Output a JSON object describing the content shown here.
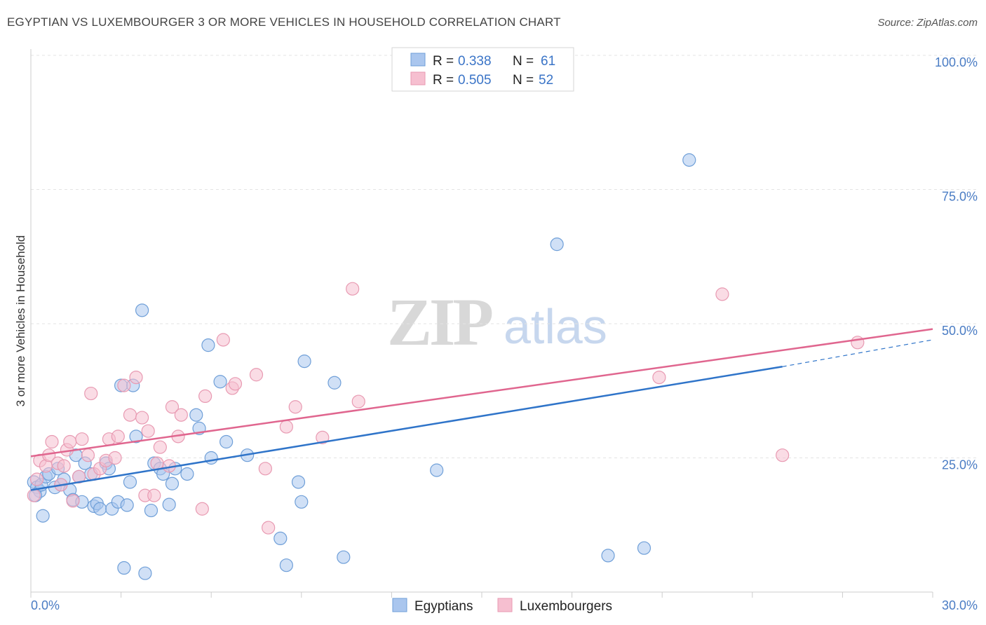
{
  "title": "EGYPTIAN VS LUXEMBOURGER 3 OR MORE VEHICLES IN HOUSEHOLD CORRELATION CHART",
  "source": "Source: ZipAtlas.com",
  "watermark": {
    "zip": "ZIP",
    "atlas": "atlas"
  },
  "colors": {
    "blue_fill": "#aac6ee",
    "blue_stroke": "#6f9fd8",
    "blue_line": "#2f74c9",
    "pink_fill": "#f6bfd0",
    "pink_stroke": "#e89ab2",
    "pink_line": "#e0668f",
    "grid": "#e3e3e3",
    "axis_text": "#4a7cc4"
  },
  "legend": {
    "rows": [
      {
        "r_label": "R =",
        "r_value": "0.338",
        "n_label": "N =",
        "n_value": "61"
      },
      {
        "r_label": "R =",
        "r_value": "0.505",
        "n_label": "N =",
        "n_value": "52"
      }
    ]
  },
  "bottom_legend": [
    "Egyptians",
    "Luxembourgers"
  ],
  "chart_data": {
    "type": "scatter",
    "title": "EGYPTIAN VS LUXEMBOURGER 3 OR MORE VEHICLES IN HOUSEHOLD CORRELATION CHART",
    "xlabel": "",
    "ylabel": "3 or more Vehicles in Household",
    "xlim": [
      0,
      30
    ],
    "ylim": [
      0,
      100
    ],
    "x_tick_labels": [
      "0.0%",
      "30.0%"
    ],
    "y_ticks": [
      25,
      50,
      75,
      100
    ],
    "y_tick_labels": [
      "25.0%",
      "50.0%",
      "75.0%",
      "100.0%"
    ],
    "grid": true,
    "series": [
      {
        "name": "Egyptians",
        "r": 0.338,
        "n": 61,
        "trend": {
          "x0": 0,
          "y0": 19.0,
          "x1": 25.0,
          "y1": 42.0,
          "dashed_to_x": 30,
          "dashed_to_y": 47.0
        },
        "points": [
          {
            "x": 0.1,
            "y": 20.5
          },
          {
            "x": 0.2,
            "y": 19.5
          },
          {
            "x": 0.3,
            "y": 18.8
          },
          {
            "x": 0.35,
            "y": 20.0
          },
          {
            "x": 0.4,
            "y": 14.2
          },
          {
            "x": 0.5,
            "y": 21.5
          },
          {
            "x": 0.6,
            "y": 22.0
          },
          {
            "x": 0.8,
            "y": 19.5
          },
          {
            "x": 1.0,
            "y": 20.0
          },
          {
            "x": 1.1,
            "y": 21.0
          },
          {
            "x": 1.3,
            "y": 19.0
          },
          {
            "x": 1.4,
            "y": 17.2
          },
          {
            "x": 1.5,
            "y": 25.5
          },
          {
            "x": 1.6,
            "y": 21.5
          },
          {
            "x": 1.7,
            "y": 16.8
          },
          {
            "x": 1.8,
            "y": 24.0
          },
          {
            "x": 2.0,
            "y": 22.0
          },
          {
            "x": 2.1,
            "y": 16.0
          },
          {
            "x": 2.2,
            "y": 16.5
          },
          {
            "x": 2.3,
            "y": 15.5
          },
          {
            "x": 2.5,
            "y": 24.0
          },
          {
            "x": 2.6,
            "y": 23.0
          },
          {
            "x": 2.7,
            "y": 15.5
          },
          {
            "x": 2.9,
            "y": 16.8
          },
          {
            "x": 3.0,
            "y": 38.5
          },
          {
            "x": 3.1,
            "y": 4.5
          },
          {
            "x": 3.2,
            "y": 16.2
          },
          {
            "x": 3.3,
            "y": 20.5
          },
          {
            "x": 3.4,
            "y": 38.5
          },
          {
            "x": 3.5,
            "y": 29.0
          },
          {
            "x": 3.7,
            "y": 52.5
          },
          {
            "x": 3.8,
            "y": 3.5
          },
          {
            "x": 4.0,
            "y": 15.2
          },
          {
            "x": 4.1,
            "y": 24.0
          },
          {
            "x": 4.3,
            "y": 23.0
          },
          {
            "x": 4.4,
            "y": 22.0
          },
          {
            "x": 4.6,
            "y": 16.3
          },
          {
            "x": 4.7,
            "y": 20.2
          },
          {
            "x": 4.8,
            "y": 23.0
          },
          {
            "x": 5.2,
            "y": 22.0
          },
          {
            "x": 5.5,
            "y": 33.0
          },
          {
            "x": 5.6,
            "y": 30.5
          },
          {
            "x": 5.9,
            "y": 46.0
          },
          {
            "x": 6.0,
            "y": 25.0
          },
          {
            "x": 6.3,
            "y": 39.2
          },
          {
            "x": 6.5,
            "y": 28.0
          },
          {
            "x": 7.2,
            "y": 25.5
          },
          {
            "x": 8.3,
            "y": 10.0
          },
          {
            "x": 8.5,
            "y": 5.0
          },
          {
            "x": 8.9,
            "y": 20.5
          },
          {
            "x": 9.0,
            "y": 16.8
          },
          {
            "x": 9.1,
            "y": 43.0
          },
          {
            "x": 10.1,
            "y": 39.0
          },
          {
            "x": 10.4,
            "y": 6.5
          },
          {
            "x": 13.5,
            "y": 22.7
          },
          {
            "x": 17.5,
            "y": 64.8
          },
          {
            "x": 19.2,
            "y": 6.8
          },
          {
            "x": 20.4,
            "y": 8.2
          },
          {
            "x": 21.9,
            "y": 80.5
          },
          {
            "x": 0.15,
            "y": 18.0
          },
          {
            "x": 0.9,
            "y": 23.0
          }
        ]
      },
      {
        "name": "Luxembourgers",
        "r": 0.505,
        "n": 52,
        "trend": {
          "x0": 0,
          "y0": 25.3,
          "x1": 30,
          "y1": 49.0
        },
        "points": [
          {
            "x": 0.1,
            "y": 18.0
          },
          {
            "x": 0.3,
            "y": 24.5
          },
          {
            "x": 0.5,
            "y": 23.5
          },
          {
            "x": 0.6,
            "y": 25.5
          },
          {
            "x": 0.7,
            "y": 28.0
          },
          {
            "x": 0.9,
            "y": 24.0
          },
          {
            "x": 1.1,
            "y": 23.5
          },
          {
            "x": 1.2,
            "y": 26.5
          },
          {
            "x": 1.3,
            "y": 28.0
          },
          {
            "x": 1.4,
            "y": 17.0
          },
          {
            "x": 1.6,
            "y": 21.5
          },
          {
            "x": 1.7,
            "y": 28.5
          },
          {
            "x": 1.9,
            "y": 25.5
          },
          {
            "x": 2.0,
            "y": 37.0
          },
          {
            "x": 2.1,
            "y": 22.0
          },
          {
            "x": 2.3,
            "y": 23.0
          },
          {
            "x": 2.5,
            "y": 24.5
          },
          {
            "x": 2.6,
            "y": 28.5
          },
          {
            "x": 2.8,
            "y": 25.0
          },
          {
            "x": 2.9,
            "y": 29.0
          },
          {
            "x": 3.1,
            "y": 38.5
          },
          {
            "x": 3.3,
            "y": 33.0
          },
          {
            "x": 3.5,
            "y": 40.0
          },
          {
            "x": 3.7,
            "y": 32.5
          },
          {
            "x": 3.8,
            "y": 18.0
          },
          {
            "x": 3.9,
            "y": 30.0
          },
          {
            "x": 4.1,
            "y": 18.0
          },
          {
            "x": 4.2,
            "y": 24.0
          },
          {
            "x": 4.3,
            "y": 27.0
          },
          {
            "x": 4.6,
            "y": 23.5
          },
          {
            "x": 4.7,
            "y": 34.5
          },
          {
            "x": 4.9,
            "y": 29.0
          },
          {
            "x": 5.0,
            "y": 33.0
          },
          {
            "x": 5.7,
            "y": 15.5
          },
          {
            "x": 5.8,
            "y": 36.5
          },
          {
            "x": 6.4,
            "y": 47.0
          },
          {
            "x": 6.7,
            "y": 38.0
          },
          {
            "x": 6.8,
            "y": 38.8
          },
          {
            "x": 7.5,
            "y": 40.5
          },
          {
            "x": 7.8,
            "y": 23.0
          },
          {
            "x": 7.9,
            "y": 12.0
          },
          {
            "x": 8.5,
            "y": 30.8
          },
          {
            "x": 8.8,
            "y": 34.5
          },
          {
            "x": 9.7,
            "y": 28.8
          },
          {
            "x": 10.7,
            "y": 56.5
          },
          {
            "x": 10.9,
            "y": 35.5
          },
          {
            "x": 20.9,
            "y": 40.0
          },
          {
            "x": 23.0,
            "y": 55.5
          },
          {
            "x": 25.0,
            "y": 25.5
          },
          {
            "x": 27.5,
            "y": 46.5
          },
          {
            "x": 0.2,
            "y": 21.0
          },
          {
            "x": 1.0,
            "y": 20.0
          }
        ]
      }
    ]
  }
}
